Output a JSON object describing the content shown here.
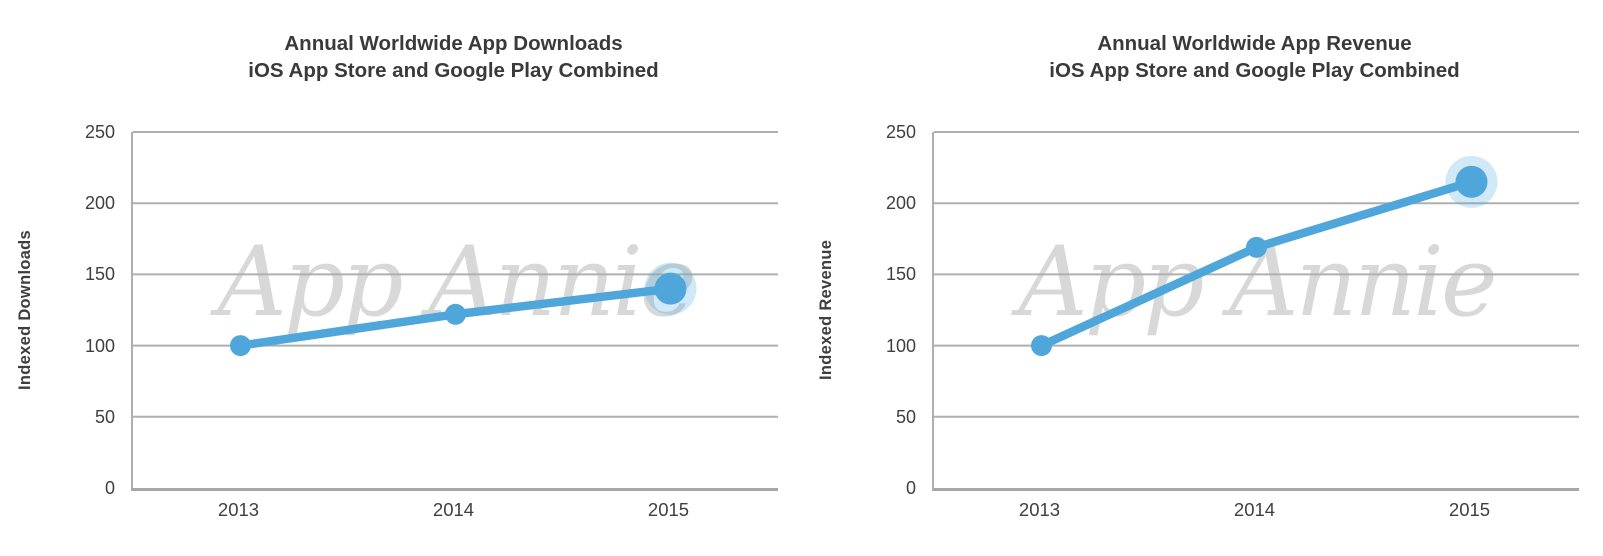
{
  "style": {
    "accent_blue": "#4FA6DB",
    "halo_blue": "rgba(79, 166, 219, 0.26)",
    "grid_gray": "#AFAFAF",
    "axis_gray": "#A6A6A6",
    "text_dark": "#3E3E3E",
    "watermark_gray": "#D8D8D8",
    "background": "#FFFFFF"
  },
  "chart_data": [
    {
      "type": "line",
      "title_line1": "Annual Worldwide App Downloads",
      "title_line2": "iOS App Store and Google Play Combined",
      "ylabel": "Indexed Downloads",
      "xlabel": "",
      "categories": [
        "2013",
        "2014",
        "2015"
      ],
      "values": [
        100,
        122,
        140
      ],
      "ylim": [
        0,
        250
      ],
      "yticks": [
        0,
        50,
        100,
        150,
        200,
        250
      ],
      "grid": true,
      "legend_position": "none",
      "highlight_last_point": true,
      "watermark": "App Annie"
    },
    {
      "type": "line",
      "title_line1": "Annual Worldwide App Revenue",
      "title_line2": "iOS App Store and Google Play Combined",
      "ylabel": "Indexed Revenue",
      "xlabel": "",
      "categories": [
        "2013",
        "2014",
        "2015"
      ],
      "values": [
        100,
        169,
        215
      ],
      "ylim": [
        0,
        250
      ],
      "yticks": [
        0,
        50,
        100,
        150,
        200,
        250
      ],
      "grid": true,
      "legend_position": "none",
      "highlight_last_point": true,
      "watermark": "App Annie"
    }
  ]
}
